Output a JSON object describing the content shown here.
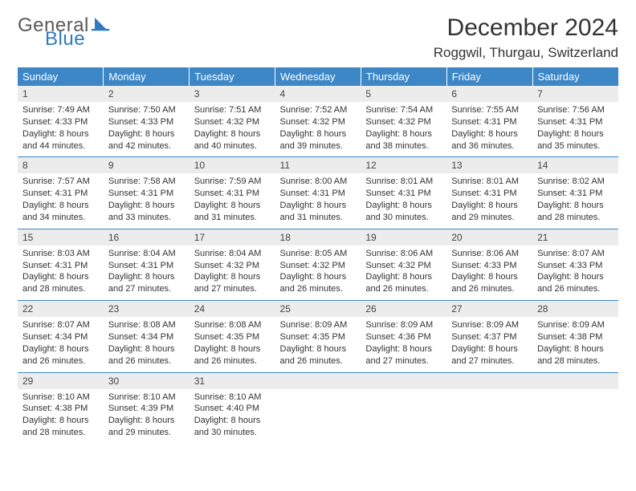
{
  "logo": {
    "word1": "General",
    "word2": "Blue",
    "sail_color": "#2f7bbf"
  },
  "title": "December 2024",
  "location": "Roggwil, Thurgau, Switzerland",
  "header_bg": "#3d87c7",
  "daynum_bg": "#ececec",
  "border_color": "#3d87c7",
  "days_of_week": [
    "Sunday",
    "Monday",
    "Tuesday",
    "Wednesday",
    "Thursday",
    "Friday",
    "Saturday"
  ],
  "weeks": [
    [
      {
        "n": "1",
        "sunrise": "7:49 AM",
        "sunset": "4:33 PM",
        "dl": "8 hours and 44 minutes."
      },
      {
        "n": "2",
        "sunrise": "7:50 AM",
        "sunset": "4:33 PM",
        "dl": "8 hours and 42 minutes."
      },
      {
        "n": "3",
        "sunrise": "7:51 AM",
        "sunset": "4:32 PM",
        "dl": "8 hours and 40 minutes."
      },
      {
        "n": "4",
        "sunrise": "7:52 AM",
        "sunset": "4:32 PM",
        "dl": "8 hours and 39 minutes."
      },
      {
        "n": "5",
        "sunrise": "7:54 AM",
        "sunset": "4:32 PM",
        "dl": "8 hours and 38 minutes."
      },
      {
        "n": "6",
        "sunrise": "7:55 AM",
        "sunset": "4:31 PM",
        "dl": "8 hours and 36 minutes."
      },
      {
        "n": "7",
        "sunrise": "7:56 AM",
        "sunset": "4:31 PM",
        "dl": "8 hours and 35 minutes."
      }
    ],
    [
      {
        "n": "8",
        "sunrise": "7:57 AM",
        "sunset": "4:31 PM",
        "dl": "8 hours and 34 minutes."
      },
      {
        "n": "9",
        "sunrise": "7:58 AM",
        "sunset": "4:31 PM",
        "dl": "8 hours and 33 minutes."
      },
      {
        "n": "10",
        "sunrise": "7:59 AM",
        "sunset": "4:31 PM",
        "dl": "8 hours and 31 minutes."
      },
      {
        "n": "11",
        "sunrise": "8:00 AM",
        "sunset": "4:31 PM",
        "dl": "8 hours and 31 minutes."
      },
      {
        "n": "12",
        "sunrise": "8:01 AM",
        "sunset": "4:31 PM",
        "dl": "8 hours and 30 minutes."
      },
      {
        "n": "13",
        "sunrise": "8:01 AM",
        "sunset": "4:31 PM",
        "dl": "8 hours and 29 minutes."
      },
      {
        "n": "14",
        "sunrise": "8:02 AM",
        "sunset": "4:31 PM",
        "dl": "8 hours and 28 minutes."
      }
    ],
    [
      {
        "n": "15",
        "sunrise": "8:03 AM",
        "sunset": "4:31 PM",
        "dl": "8 hours and 28 minutes."
      },
      {
        "n": "16",
        "sunrise": "8:04 AM",
        "sunset": "4:31 PM",
        "dl": "8 hours and 27 minutes."
      },
      {
        "n": "17",
        "sunrise": "8:04 AM",
        "sunset": "4:32 PM",
        "dl": "8 hours and 27 minutes."
      },
      {
        "n": "18",
        "sunrise": "8:05 AM",
        "sunset": "4:32 PM",
        "dl": "8 hours and 26 minutes."
      },
      {
        "n": "19",
        "sunrise": "8:06 AM",
        "sunset": "4:32 PM",
        "dl": "8 hours and 26 minutes."
      },
      {
        "n": "20",
        "sunrise": "8:06 AM",
        "sunset": "4:33 PM",
        "dl": "8 hours and 26 minutes."
      },
      {
        "n": "21",
        "sunrise": "8:07 AM",
        "sunset": "4:33 PM",
        "dl": "8 hours and 26 minutes."
      }
    ],
    [
      {
        "n": "22",
        "sunrise": "8:07 AM",
        "sunset": "4:34 PM",
        "dl": "8 hours and 26 minutes."
      },
      {
        "n": "23",
        "sunrise": "8:08 AM",
        "sunset": "4:34 PM",
        "dl": "8 hours and 26 minutes."
      },
      {
        "n": "24",
        "sunrise": "8:08 AM",
        "sunset": "4:35 PM",
        "dl": "8 hours and 26 minutes."
      },
      {
        "n": "25",
        "sunrise": "8:09 AM",
        "sunset": "4:35 PM",
        "dl": "8 hours and 26 minutes."
      },
      {
        "n": "26",
        "sunrise": "8:09 AM",
        "sunset": "4:36 PM",
        "dl": "8 hours and 27 minutes."
      },
      {
        "n": "27",
        "sunrise": "8:09 AM",
        "sunset": "4:37 PM",
        "dl": "8 hours and 27 minutes."
      },
      {
        "n": "28",
        "sunrise": "8:09 AM",
        "sunset": "4:38 PM",
        "dl": "8 hours and 28 minutes."
      }
    ],
    [
      {
        "n": "29",
        "sunrise": "8:10 AM",
        "sunset": "4:38 PM",
        "dl": "8 hours and 28 minutes."
      },
      {
        "n": "30",
        "sunrise": "8:10 AM",
        "sunset": "4:39 PM",
        "dl": "8 hours and 29 minutes."
      },
      {
        "n": "31",
        "sunrise": "8:10 AM",
        "sunset": "4:40 PM",
        "dl": "8 hours and 30 minutes."
      },
      null,
      null,
      null,
      null
    ]
  ],
  "labels": {
    "sunrise": "Sunrise:",
    "sunset": "Sunset:",
    "daylight": "Daylight:"
  }
}
